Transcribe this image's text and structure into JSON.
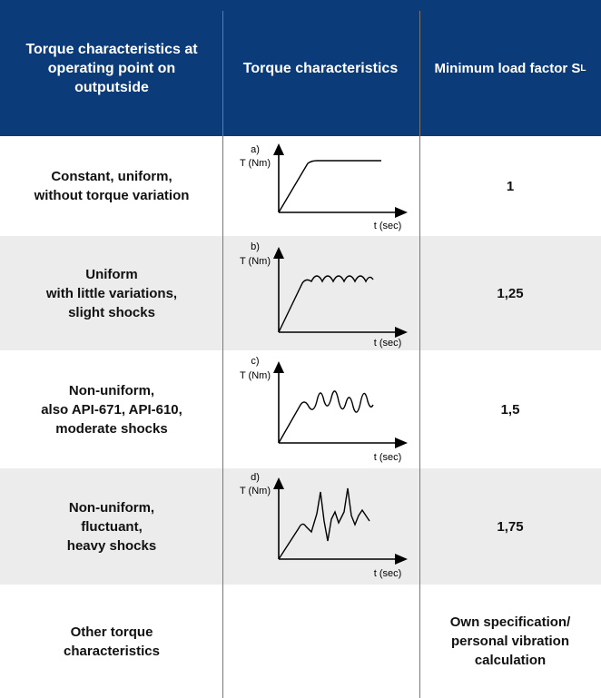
{
  "header": {
    "col1": "Torque characteristics at operating point on outputside",
    "col2": "Torque characteristics",
    "col3_main": "Minimum load factor S",
    "col3_sub": "L"
  },
  "graph_labels": {
    "y_axis": "T (Nm)",
    "x_axis": "t (sec)"
  },
  "rows": [
    {
      "description": "Constant, uniform,\nwithout torque variation",
      "graph_letter": "a)",
      "factor": "1",
      "curve": "constant"
    },
    {
      "description": "Uniform\nwith little variations,\nslight shocks",
      "graph_letter": "b)",
      "factor": "1,25",
      "curve": "little"
    },
    {
      "description": "Non-uniform,\nalso API-671, API-610,\nmoderate shocks",
      "graph_letter": "c)",
      "factor": "1,5",
      "curve": "moderate"
    },
    {
      "description": "Non-uniform,\nfluctuant,\nheavy shocks",
      "graph_letter": "d)",
      "factor": "1,75",
      "curve": "heavy"
    },
    {
      "description": "Other torque\ncharacteristics",
      "graph_letter": "",
      "factor": "Own specification/\npersonal vibration\ncalculation",
      "curve": "none"
    }
  ]
}
